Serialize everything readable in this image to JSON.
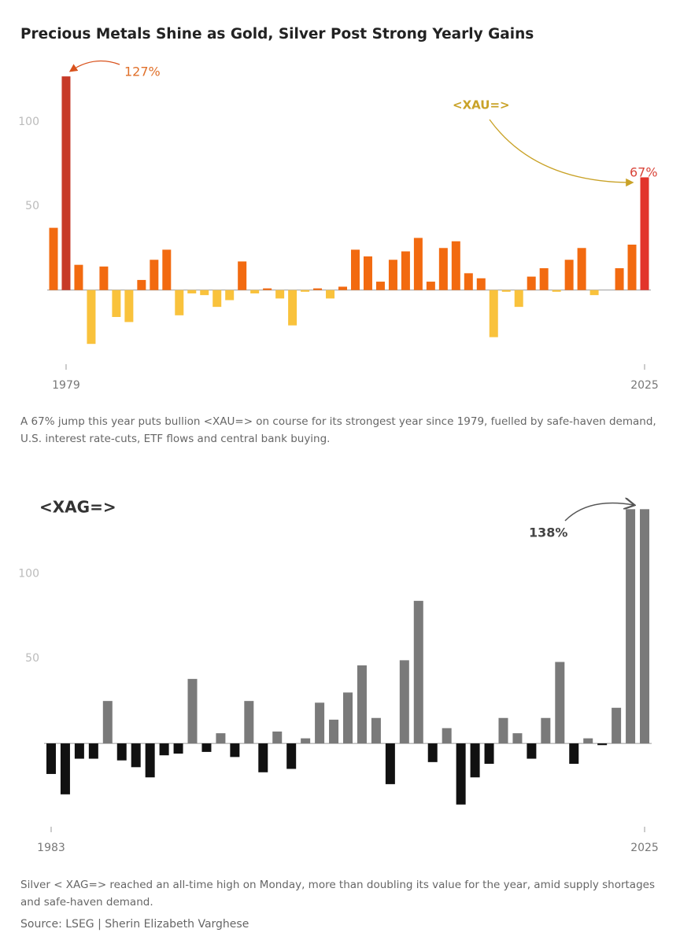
{
  "title": "Precious Metals Shine as Gold, Silver Post Strong Yearly Gains",
  "chart_data": [
    {
      "type": "bar",
      "x": [
        1978,
        1979,
        1980,
        1981,
        1982,
        1983,
        1984,
        1985,
        1986,
        1987,
        1988,
        1989,
        1990,
        1991,
        1992,
        1993,
        1994,
        1995,
        1996,
        1997,
        1998,
        1999,
        2000,
        2001,
        2002,
        2003,
        2004,
        2005,
        2006,
        2007,
        2008,
        2009,
        2010,
        2011,
        2012,
        2013,
        2014,
        2015,
        2016,
        2017,
        2018,
        2019,
        2020,
        2021,
        2022,
        2023,
        2024,
        2025
      ],
      "values": [
        37,
        127,
        15,
        -32,
        14,
        -16,
        -19,
        6,
        18,
        24,
        -15,
        -2,
        -3,
        -10,
        -6,
        17,
        -2,
        1,
        -5,
        -21,
        -1,
        1,
        -5,
        2,
        24,
        20,
        5,
        18,
        23,
        31,
        5,
        25,
        29,
        10,
        7,
        -28,
        -1,
        -10,
        8,
        13,
        -1,
        18,
        25,
        -3,
        0,
        13,
        27,
        67
      ],
      "color": "#f26a10",
      "negative_color": "#f9c23c",
      "highlights": [
        {
          "x": 1979,
          "color": "#c73a28"
        },
        {
          "x": 2025,
          "color": "#e2342b"
        }
      ],
      "xlim": [
        1977.5,
        2025.5
      ],
      "xticks": [
        1979,
        2025
      ],
      "ylim": [
        -45,
        135
      ],
      "yticks": [
        50,
        100
      ],
      "annotations": [
        {
          "text": "127%",
          "color": "#e0702a"
        },
        {
          "text": "<XAU=>",
          "color": "#c9a227"
        },
        {
          "text": "67%",
          "color": "#d9453a"
        }
      ],
      "caption": "A 67% jump this year puts bullion <XAU=> on course for its strongest year since 1979, fuelled by safe-haven demand, U.S. interest rate-cuts, ETF flows and central bank buying."
    },
    {
      "type": "bar",
      "x": [
        1983,
        1984,
        1985,
        1986,
        1987,
        1988,
        1989,
        1990,
        1991,
        1992,
        1993,
        1994,
        1995,
        1996,
        1997,
        1998,
        1999,
        2000,
        2001,
        2002,
        2003,
        2004,
        2005,
        2006,
        2007,
        2008,
        2009,
        2010,
        2011,
        2012,
        2013,
        2014,
        2015,
        2016,
        2017,
        2018,
        2019,
        2020,
        2021,
        2022,
        2023,
        2024,
        2025
      ],
      "values": [
        -18,
        -30,
        -9,
        -9,
        25,
        -10,
        -14,
        -20,
        -7,
        -6,
        38,
        -5,
        6,
        -8,
        25,
        -17,
        7,
        -15,
        3,
        24,
        14,
        30,
        46,
        15,
        -24,
        49,
        84,
        -11,
        9,
        -36,
        -20,
        -12,
        15,
        6,
        -9,
        15,
        48,
        -12,
        3,
        -1,
        21,
        138,
        138
      ],
      "color": "#7a7a7a",
      "negative_color": "#111111",
      "xlim": [
        1982.5,
        2025.5
      ],
      "xticks": [
        1983,
        2025
      ],
      "ylim": [
        -50,
        140
      ],
      "yticks": [
        50,
        100
      ],
      "annotations": [
        {
          "text": "<XAG=>",
          "color": "#333333"
        },
        {
          "text": "138%",
          "color": "#444444"
        }
      ],
      "caption": "Silver < XAG=> reached an all-time high on Monday, more than doubling its value for the year, amid supply shortages and safe-haven demand."
    }
  ],
  "source": "Source: LSEG | Sherin Elizabeth Varghese"
}
